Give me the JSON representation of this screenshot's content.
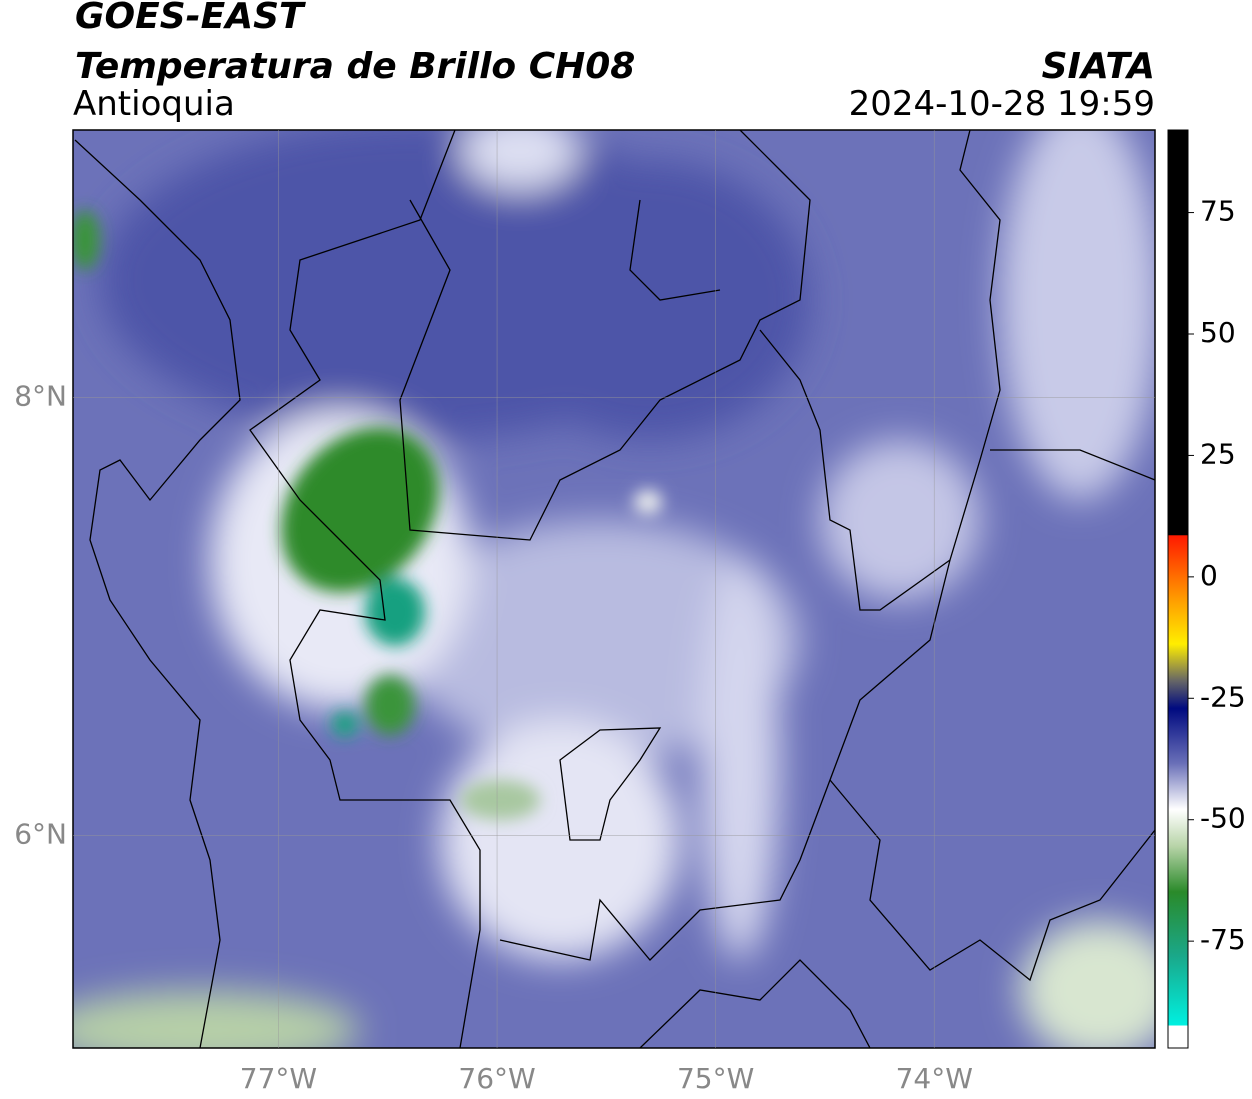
{
  "header": {
    "title": "GOES-EAST",
    "subtitle": "Temperatura de Brillo CH08",
    "region": "Antioquia",
    "agency": "SIATA",
    "datetime": "2024-10-28 19:59"
  },
  "map": {
    "xlim": [
      -77.94,
      -72.99
    ],
    "ylim": [
      5.03,
      9.22
    ],
    "xticks": [
      {
        "value": -77,
        "label": "77°W"
      },
      {
        "value": -76,
        "label": "76°W"
      },
      {
        "value": -75,
        "label": "75°W"
      },
      {
        "value": -74,
        "label": "74°W"
      }
    ],
    "yticks": [
      {
        "value": 6,
        "label": "6°N"
      },
      {
        "value": 8,
        "label": "8°N"
      }
    ]
  },
  "colorbar": {
    "lim": [
      -97,
      92
    ],
    "ticks": [
      75,
      50,
      25,
      0,
      -25,
      -50,
      -75
    ]
  }
}
